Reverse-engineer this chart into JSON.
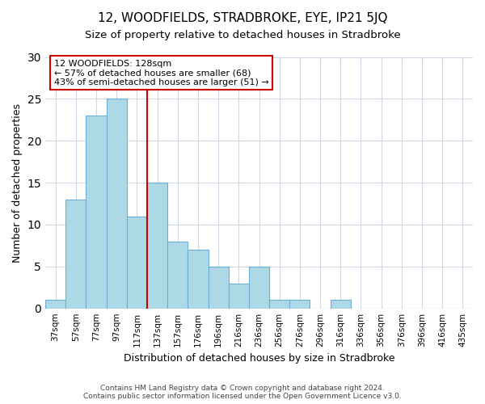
{
  "title": "12, WOODFIELDS, STRADBROKE, EYE, IP21 5JQ",
  "subtitle": "Size of property relative to detached houses in Stradbroke",
  "xlabel": "Distribution of detached houses by size in Stradbroke",
  "ylabel": "Number of detached properties",
  "bar_color": "#add8e6",
  "bar_edge_color": "#6baed6",
  "bins": [
    "37sqm",
    "57sqm",
    "77sqm",
    "97sqm",
    "117sqm",
    "137sqm",
    "157sqm",
    "176sqm",
    "196sqm",
    "216sqm",
    "236sqm",
    "256sqm",
    "276sqm",
    "296sqm",
    "316sqm",
    "336sqm",
    "356sqm",
    "376sqm",
    "396sqm",
    "416sqm",
    "435sqm"
  ],
  "values": [
    1,
    13,
    23,
    25,
    11,
    15,
    8,
    7,
    5,
    3,
    5,
    1,
    1,
    0,
    1,
    0,
    0,
    0,
    0,
    0,
    0
  ],
  "vline_x": 5,
  "vline_color": "#cc0000",
  "annotation_title": "12 WOODFIELDS: 128sqm",
  "annotation_line1": "← 57% of detached houses are smaller (68)",
  "annotation_line2": "43% of semi-detached houses are larger (51) →",
  "ylim": [
    0,
    30
  ],
  "yticks": [
    0,
    5,
    10,
    15,
    20,
    25,
    30
  ],
  "footer1": "Contains HM Land Registry data © Crown copyright and database right 2024.",
  "footer2": "Contains public sector information licensed under the Open Government Licence v3.0.",
  "background_color": "#ffffff",
  "grid_color": "#d0d8e8"
}
